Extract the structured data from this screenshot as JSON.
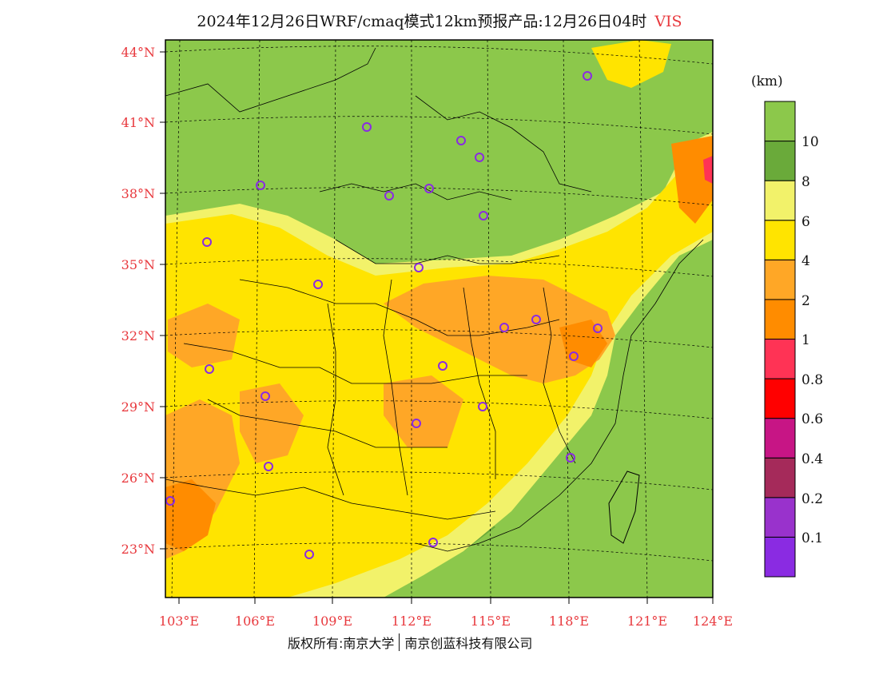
{
  "title": {
    "main": "2024年12月26日WRF/cmaq模式12km预报产品:12月26日04时",
    "variable": "VIS"
  },
  "unit_label": "(km)",
  "lat_labels": [
    "44°N",
    "41°N",
    "38°N",
    "35°N",
    "32°N",
    "29°N",
    "26°N",
    "23°N"
  ],
  "lon_labels": [
    "103°E",
    "106°E",
    "109°E",
    "112°E",
    "115°E",
    "118°E",
    "121°E",
    "124°E"
  ],
  "colorbar": {
    "colors": [
      "#8a2be2",
      "#9932cc",
      "#a52a5a",
      "#c71585",
      "#ff0000",
      "#ff3355",
      "#ff8c00",
      "#ffa726",
      "#ffe400",
      "#f2f26a",
      "#6aaa3a",
      "#8cc84b"
    ],
    "tick_labels": [
      "0.1",
      "0.2",
      "0.4",
      "0.6",
      "0.8",
      "1",
      "2",
      "4",
      "6",
      "8",
      "10"
    ]
  },
  "legend_colors": {
    "over_10": "#8cc84b",
    "8_10": "#6aaa3a",
    "6_8": "#f2f26a",
    "4_6": "#ffe400",
    "2_4": "#ffa726",
    "1_2": "#ff8c00",
    "ocean": "#8cc84b",
    "station_marker": "#8a2be2"
  },
  "footer": {
    "left": "版权所有:南京大学",
    "right": "南京创蓝科技有限公司"
  }
}
